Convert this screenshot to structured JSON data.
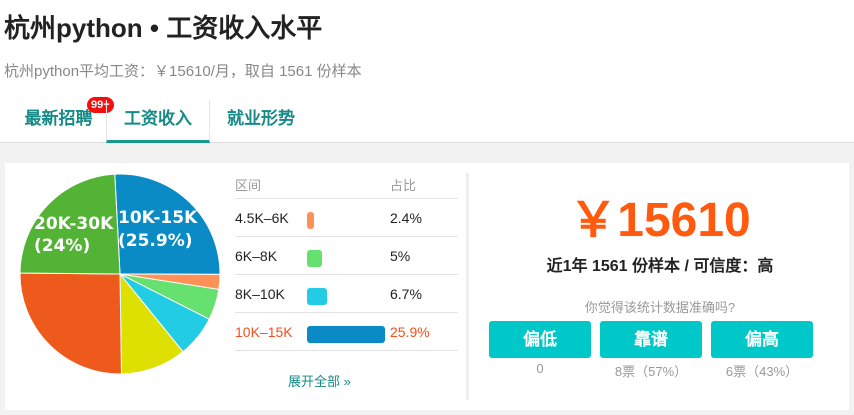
{
  "header": {
    "title": "杭州python • 工资收入水平",
    "subtitle": "杭州python平均工资：￥15610/月，取自 1561 份样本"
  },
  "tabs": [
    {
      "label": "最新招聘",
      "badge": "99+"
    },
    {
      "label": "工资收入",
      "active": true
    },
    {
      "label": "就业形势"
    }
  ],
  "table": {
    "col_range": "区间",
    "col_ratio": "占比",
    "rows": [
      {
        "range": "4.5K–6K",
        "ratio": "2.4%",
        "value": 2.4,
        "color": "#fe9256"
      },
      {
        "range": "6K–8K",
        "ratio": "5%",
        "value": 5,
        "color": "#66e06e"
      },
      {
        "range": "8K–10K",
        "ratio": "6.7%",
        "value": 6.7,
        "color": "#22cce4"
      },
      {
        "range": "10K–15K",
        "ratio": "25.9%",
        "value": 25.9,
        "color": "#0a8bc5",
        "highlight": true
      }
    ],
    "expand": "展开全部 »"
  },
  "chart_data": {
    "type": "pie",
    "slices": [
      {
        "label": "10K-15K",
        "pct_label": "(25.9%)",
        "value": 25.9,
        "color": "#0a8bc5"
      },
      {
        "label": "",
        "value": 2.4,
        "color": "#fe9256"
      },
      {
        "label": "",
        "value": 5,
        "color": "#66e06e"
      },
      {
        "label": "",
        "value": 6.7,
        "color": "#22cce4"
      },
      {
        "label": "",
        "value": 10.6,
        "color": "#dde000"
      },
      {
        "label": "",
        "value": 25.4,
        "color": "#ee5a1c"
      },
      {
        "label": "20K-30K",
        "pct_label": "(24%)",
        "value": 24,
        "color": "#52b334"
      }
    ]
  },
  "summary": {
    "salary": "￥15610",
    "info": "近1年 1561 份样本 / 可信度：高",
    "question": "你觉得该统计数据准确吗?"
  },
  "votes": [
    {
      "label": "偏低",
      "count": "0"
    },
    {
      "label": "靠谱",
      "count": "8票（57%）"
    },
    {
      "label": "偏高",
      "count": "6票（43%）"
    }
  ],
  "colors": {
    "accent": "#168a86",
    "salary": "#ff5a0e",
    "vote_button": "#00c8c8",
    "badge": "#f1100f"
  }
}
